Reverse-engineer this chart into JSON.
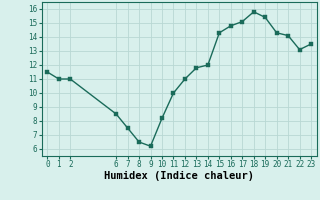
{
  "x": [
    0,
    1,
    2,
    6,
    7,
    8,
    9,
    10,
    11,
    12,
    13,
    14,
    15,
    16,
    17,
    18,
    19,
    20,
    21,
    22,
    23
  ],
  "y": [
    11.5,
    11.0,
    11.0,
    8.5,
    7.5,
    6.5,
    6.2,
    8.2,
    10.0,
    11.0,
    11.8,
    12.0,
    14.3,
    14.8,
    15.1,
    15.8,
    15.4,
    14.3,
    14.1,
    13.1,
    13.5
  ],
  "line_color": "#1a6b5a",
  "marker": "s",
  "marker_size": 2.5,
  "bg_color": "#d8f0ec",
  "grid_color": "#b8d8d4",
  "xlabel": "Humidex (Indice chaleur)",
  "xlim": [
    -0.5,
    23.5
  ],
  "ylim": [
    5.5,
    16.5
  ],
  "yticks": [
    6,
    7,
    8,
    9,
    10,
    11,
    12,
    13,
    14,
    15,
    16
  ],
  "xticks": [
    0,
    1,
    2,
    6,
    7,
    8,
    9,
    10,
    11,
    12,
    13,
    14,
    15,
    16,
    17,
    18,
    19,
    20,
    21,
    22,
    23
  ],
  "tick_fontsize": 5.5,
  "xlabel_fontsize": 7.5,
  "linewidth": 1.0
}
